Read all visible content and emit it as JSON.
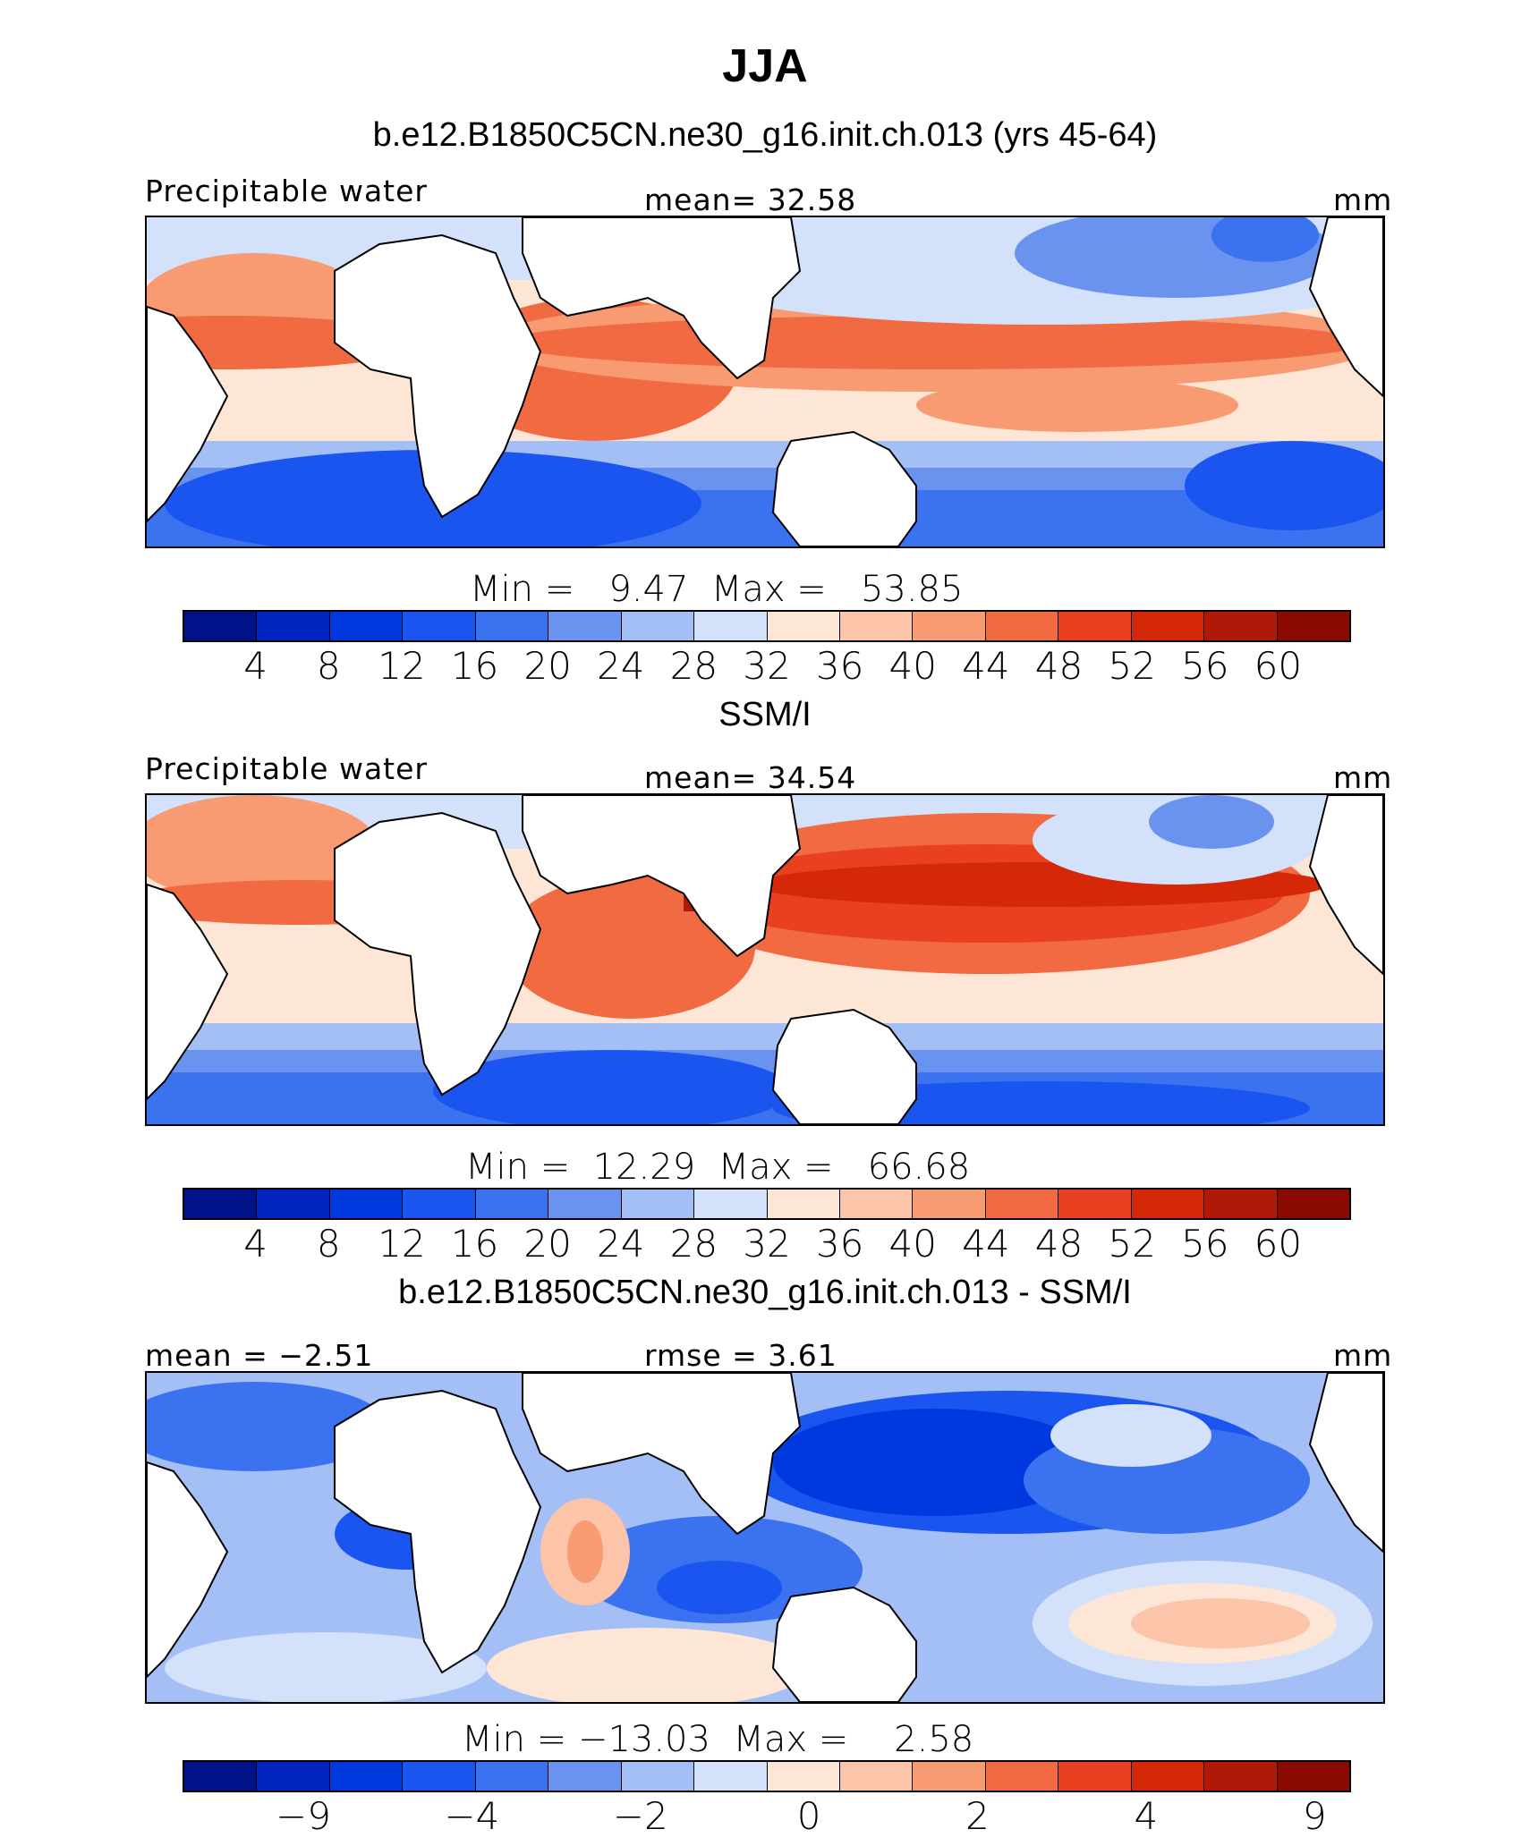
{
  "figure": {
    "title": "JJA"
  },
  "colors": [
    "#00128a",
    "#0024c0",
    "#0038e0",
    "#1a55f0",
    "#3a72f0",
    "#6a93f0",
    "#a4bff5",
    "#d3e2fa",
    "#fde6d6",
    "#fcc4a8",
    "#f89a72",
    "#f26a42",
    "#e84020",
    "#d42808",
    "#b01808",
    "#8a0a02"
  ],
  "panels": [
    {
      "id": "model",
      "subtitle": "b.e12.B1850C5CN.ne30_g16.init.ch.013 (yrs 45-64)",
      "left_label": "Precipitable water",
      "center_label": "mean=  32.58",
      "right_label": "mm",
      "minmax": "Min =   9.47  Max =   53.85",
      "ticks": [
        "4",
        "8",
        "12",
        "16",
        "20",
        "24",
        "28",
        "32",
        "36",
        "40",
        "44",
        "48",
        "52",
        "56",
        "60"
      ]
    },
    {
      "id": "obs",
      "subtitle": "SSM/I",
      "left_label": "Precipitable water",
      "center_label": "mean=  34.54",
      "right_label": "mm",
      "minmax": "Min =  12.29  Max =   66.68",
      "ticks": [
        "4",
        "8",
        "12",
        "16",
        "20",
        "24",
        "28",
        "32",
        "36",
        "40",
        "44",
        "48",
        "52",
        "56",
        "60"
      ]
    },
    {
      "id": "diff",
      "subtitle": "b.e12.B1850C5CN.ne30_g16.init.ch.013 - SSM/I",
      "left_label": "mean =  −2.51",
      "center_label": "rmse =    3.61",
      "right_label": "mm",
      "minmax": "Min = −13.03  Max =    2.58",
      "ticks": [
        "−9",
        "",
        "−4",
        "",
        "−2",
        "",
        "0",
        "",
        "2",
        "",
        "4",
        "",
        "9"
      ]
    }
  ]
}
